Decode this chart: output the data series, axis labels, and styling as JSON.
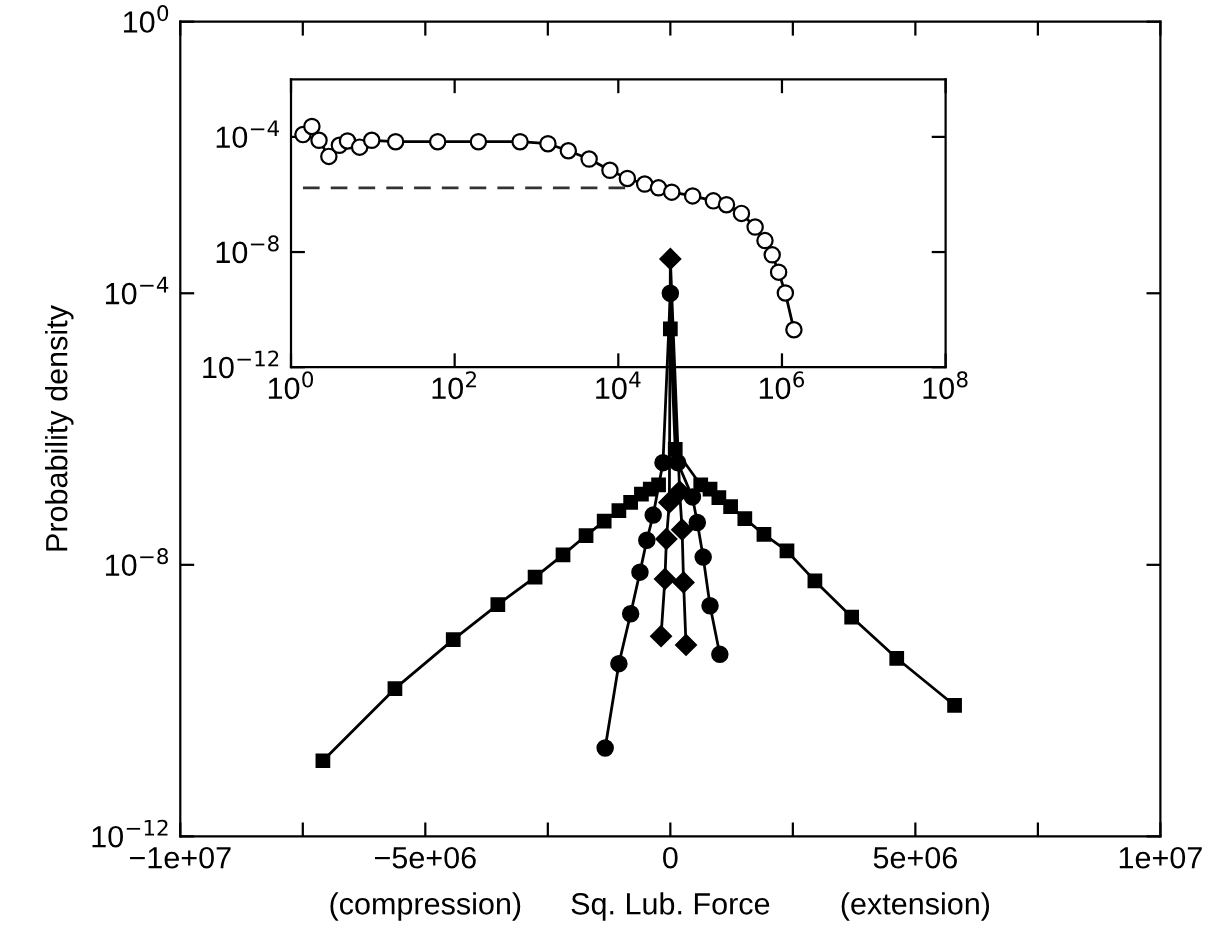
{
  "chart_data": [
    {
      "type": "line",
      "xlabel": "Sq. Lub. Force",
      "ylabel": "Probability density",
      "annotations": [
        "(compression)",
        "(extension)"
      ],
      "log": "y",
      "xlim": [
        -10000000,
        10000000
      ],
      "ylim": [
        1e-12,
        1
      ],
      "xticks": [
        {
          "value": -10000000,
          "label": "−1e+07"
        },
        {
          "value": -7500000,
          "label": null
        },
        {
          "value": -5000000,
          "label": "−5e+06"
        },
        {
          "value": -2500000,
          "label": null
        },
        0,
        {
          "value": 2500000,
          "label": null
        },
        {
          "value": 5000000,
          "label": "5e+06"
        },
        {
          "value": 7500000,
          "label": null
        },
        {
          "value": 10000000,
          "label": "1e+07"
        }
      ],
      "yticks": [
        {
          "value": 1,
          "label": "10$^{0}$"
        },
        {
          "value": 0.0001,
          "label": "10$^{−4}$"
        },
        {
          "value": 1e-08,
          "label": "10$^{−8}$"
        },
        {
          "value": 1e-12,
          "label": "10$^{−12}$"
        }
      ],
      "grid": false,
      "legend": false,
      "line_style": "solid",
      "series": [
        {
          "color": "#000000",
          "marker": "square",
          "x": [
            -7090000,
            -5620000,
            -4430000,
            -3520000,
            -2760000,
            -2190000,
            -1720000,
            -1350000,
            -1050000,
            -810000,
            -590000,
            -410000,
            -240000,
            -100000,
            0,
            100000,
            620000,
            810000,
            990000,
            1230000,
            1520000,
            1910000,
            2380000,
            2950000,
            3700000,
            4620000,
            5800000
          ],
          "values": [
            1.3e-11,
            1.5e-10,
            7.9e-10,
            2.6e-09,
            6.6e-09,
            1.4e-08,
            2.7e-08,
            4.4e-08,
            6.3e-08,
            8.3e-08,
            1.1e-07,
            1.3e-07,
            1.5e-07,
            null,
            3e-05,
            5e-07,
            1.5e-07,
            1.3e-07,
            9.8e-08,
            7.2e-08,
            4.8e-08,
            2.8e-08,
            1.6e-08,
            5.8e-09,
            1.7e-09,
            4.2e-10,
            8.5e-11
          ]
        },
        {
          "color": "#000000",
          "marker": "circle",
          "x": [
            -1330000,
            -1050000,
            -810000,
            -620000,
            -480000,
            -350000,
            -150000,
            0,
            150000,
            450000,
            550000,
            670000,
            810000,
            1010000
          ],
          "values": [
            2e-11,
            3.5e-10,
            1.9e-09,
            7.8e-09,
            2.3e-08,
            5.4e-08,
            3.2e-07,
            0.0001,
            3.2e-07,
            1e-07,
            4.2e-08,
            1.3e-08,
            2.5e-09,
            4.8e-10
          ]
        },
        {
          "color": "#000000",
          "marker": "diamond",
          "x": [
            -190000,
            -110000,
            -80000,
            -20000,
            0,
            190000,
            240000,
            270000,
            320000
          ],
          "values": [
            8.9e-10,
            6.2e-09,
            2.4e-08,
            8.3e-08,
            0.00032,
            1.2e-07,
            3.3e-08,
            5.5e-09,
            6.6e-10
          ]
        }
      ]
    },
    {
      "type": "line",
      "log": "xy",
      "xlim": [
        1,
        100000000
      ],
      "ylim": [
        1e-12,
        0.01
      ],
      "xticks": [
        {
          "value": 1,
          "label": "10$^{0}$"
        },
        {
          "value": 100,
          "label": "10$^{2}$"
        },
        {
          "value": 10000,
          "label": "10$^{4}$"
        },
        {
          "value": 1000000,
          "label": "10$^{6}$"
        },
        {
          "value": 100000000,
          "label": "10$^{8}$"
        }
      ],
      "yticks": [
        {
          "value": 0.0001,
          "label": "10$^{−4}$"
        },
        {
          "value": 1e-08,
          "label": "10$^{−8}$"
        },
        {
          "value": 1e-12,
          "label": "10$^{−12}$"
        }
      ],
      "grid": false,
      "legend": false,
      "series": [
        {
          "color": "#000000",
          "marker": "circle",
          "line_style": "solid",
          "x": [
            1.4,
            1.8,
            2.2,
            2.9,
            3.9,
            4.9,
            6.9,
            9.7,
            19,
            62,
            195,
            630,
            1380,
            2450,
            4400,
            7900,
            12900,
            21000,
            31000,
            45000,
            81000,
            145000,
            210000,
            320000,
            470000,
            620000,
            760000,
            910000,
            1100000,
            1400000
          ],
          "values": [
            0.00012,
            0.00023,
            7.6e-05,
            2.1e-05,
            5.1e-05,
            7.2e-05,
            4.4e-05,
            7.6e-05,
            6.8e-05,
            6.8e-05,
            6.8e-05,
            6.8e-05,
            5.8e-05,
            3.3e-05,
            1.7e-05,
            6.9e-06,
            3.6e-06,
            2.3e-06,
            1.7e-06,
            1.2e-06,
            8.9e-07,
            6e-07,
            4.4e-07,
            2.2e-07,
            7.4e-08,
            2.5e-08,
            8e-09,
            2e-09,
            3.8e-10,
            2e-11
          ]
        },
        {
          "color": "#333333",
          "marker": "none",
          "line_style": "dashed",
          "x": [
            1.4,
            14000
          ],
          "values": [
            1.7e-06,
            1.7e-06
          ]
        }
      ]
    }
  ]
}
